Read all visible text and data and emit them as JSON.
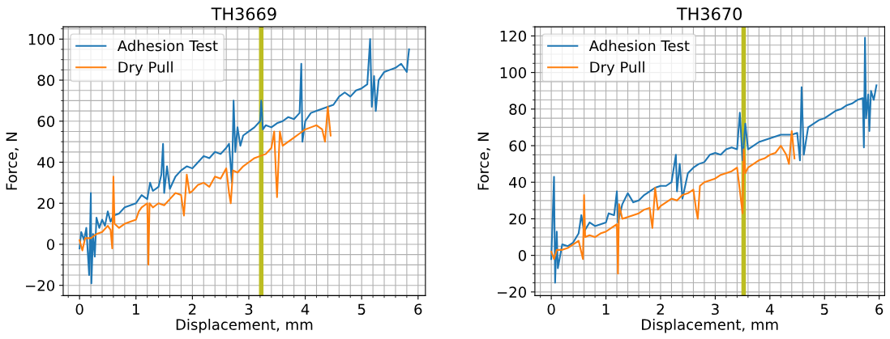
{
  "chart_data": [
    {
      "type": "line",
      "title": "TH3669",
      "xlabel": "Displacement, mm",
      "ylabel": "Force, N",
      "xlim": [
        -0.29,
        6.13
      ],
      "ylim": [
        -25,
        106
      ],
      "xticks": [
        0,
        1,
        2,
        3,
        4,
        5,
        6
      ],
      "yticks": [
        -20,
        0,
        20,
        40,
        60,
        80,
        100
      ],
      "grid": true,
      "legend": "top left",
      "series": [
        {
          "name": "Adhesion Test",
          "color": "#1f77b4",
          "x": [
            0,
            0.03,
            0.08,
            0.12,
            0.17,
            0.2,
            0.21,
            0.24,
            0.27,
            0.3,
            0.35,
            0.4,
            0.45,
            0.5,
            0.55,
            0.6,
            0.7,
            0.8,
            0.9,
            1.0,
            1.1,
            1.2,
            1.25,
            1.3,
            1.4,
            1.45,
            1.48,
            1.5,
            1.55,
            1.6,
            1.7,
            1.8,
            1.9,
            2.0,
            2.1,
            2.2,
            2.3,
            2.4,
            2.5,
            2.6,
            2.65,
            2.7,
            2.73,
            2.76,
            2.8,
            2.85,
            2.9,
            3.0,
            3.1,
            3.2,
            3.22,
            3.25,
            3.3,
            3.4,
            3.5,
            3.6,
            3.7,
            3.8,
            3.9,
            3.93,
            3.95,
            4.0,
            4.1,
            4.2,
            4.3,
            4.4,
            4.5,
            4.6,
            4.7,
            4.8,
            4.9,
            5.0,
            5.1,
            5.15,
            5.18,
            5.22,
            5.25,
            5.3,
            5.4,
            5.5,
            5.6,
            5.7,
            5.8,
            5.82,
            5.84
          ],
          "values": [
            -2,
            6,
            2,
            8,
            -15,
            25,
            -19,
            5,
            -6,
            13,
            8,
            12,
            9,
            16,
            11,
            14,
            15,
            18,
            19,
            20,
            24,
            22,
            30,
            26,
            28,
            34,
            49,
            25,
            38,
            27,
            33,
            36,
            38,
            37,
            40,
            43,
            42,
            45,
            44,
            47,
            49,
            30,
            70,
            45,
            57,
            48,
            53,
            55,
            57,
            60,
            70,
            56,
            58,
            57,
            59,
            60,
            62,
            61,
            64,
            88,
            50,
            60,
            64,
            65,
            66,
            67,
            68,
            72,
            74,
            72,
            75,
            76,
            78,
            100,
            67,
            82,
            65,
            80,
            84,
            85,
            86,
            88,
            84,
            90,
            95
          ]
        },
        {
          "name": "Dry Pull",
          "color": "#ff7f0e",
          "x": [
            0,
            0.05,
            0.1,
            0.2,
            0.3,
            0.4,
            0.5,
            0.55,
            0.58,
            0.6,
            0.62,
            0.7,
            0.8,
            0.9,
            1.0,
            1.05,
            1.1,
            1.2,
            1.22,
            1.24,
            1.3,
            1.4,
            1.5,
            1.6,
            1.7,
            1.8,
            1.85,
            1.9,
            1.95,
            2.0,
            2.1,
            2.2,
            2.3,
            2.4,
            2.5,
            2.6,
            2.65,
            2.68,
            2.72,
            2.8,
            2.9,
            3.0,
            3.1,
            3.2,
            3.3,
            3.4,
            3.45,
            3.48,
            3.5,
            3.55,
            3.6,
            3.7,
            3.8,
            3.9,
            4.0,
            4.1,
            4.2,
            4.3,
            4.35,
            4.4,
            4.45
          ],
          "values": [
            2,
            -3,
            3,
            3,
            5,
            6,
            9,
            7,
            -2,
            33,
            10,
            8,
            10,
            11,
            12,
            16,
            18,
            20,
            -10,
            20,
            18,
            20,
            19,
            22,
            25,
            24,
            14,
            34,
            25,
            26,
            29,
            30,
            28,
            33,
            32,
            37,
            25,
            20,
            36,
            35,
            38,
            40,
            42,
            43,
            44,
            47,
            55,
            35,
            23,
            55,
            48,
            50,
            52,
            54,
            56,
            57,
            58,
            56,
            50,
            67,
            53
          ]
        }
      ],
      "ref_lines": [
        {
          "axis": "x",
          "value": 3.22,
          "color": "#bcbd22"
        }
      ]
    },
    {
      "type": "line",
      "title": "TH3670",
      "xlabel": "Displacement, mm",
      "ylabel": "Force, N",
      "xlim": [
        -0.3,
        6.1
      ],
      "ylim": [
        -22,
        125
      ],
      "xticks": [
        0,
        1,
        2,
        3,
        4,
        5,
        6
      ],
      "yticks": [
        -20,
        0,
        20,
        40,
        60,
        80,
        100,
        120
      ],
      "grid": true,
      "legend": "top left",
      "series": [
        {
          "name": "Adhesion Test",
          "color": "#1f77b4",
          "x": [
            0,
            0.05,
            0.07,
            0.1,
            0.12,
            0.2,
            0.3,
            0.4,
            0.5,
            0.55,
            0.6,
            0.7,
            0.8,
            0.9,
            1.0,
            1.05,
            1.15,
            1.2,
            1.22,
            1.3,
            1.4,
            1.5,
            1.6,
            1.7,
            1.8,
            1.9,
            2.0,
            2.1,
            2.2,
            2.28,
            2.3,
            2.35,
            2.4,
            2.5,
            2.6,
            2.7,
            2.8,
            2.9,
            3.0,
            3.1,
            3.2,
            3.3,
            3.4,
            3.45,
            3.5,
            3.55,
            3.6,
            3.7,
            3.8,
            3.9,
            4.0,
            4.1,
            4.2,
            4.4,
            4.5,
            4.55,
            4.58,
            4.62,
            4.7,
            4.8,
            4.9,
            5.0,
            5.1,
            5.2,
            5.3,
            5.4,
            5.5,
            5.6,
            5.7,
            5.72,
            5.74,
            5.76,
            5.8,
            5.82,
            5.85,
            5.9,
            5.95
          ],
          "values": [
            -2,
            43,
            -15,
            13,
            -7,
            6,
            5,
            7,
            12,
            22,
            13,
            18,
            16,
            17,
            18,
            23,
            22,
            35,
            18,
            28,
            34,
            29,
            30,
            33,
            35,
            37,
            38,
            38,
            40,
            55,
            35,
            50,
            31,
            45,
            48,
            50,
            51,
            55,
            56,
            55,
            58,
            59,
            58,
            78,
            52,
            72,
            58,
            60,
            62,
            63,
            64,
            65,
            66,
            66,
            67,
            52,
            92,
            55,
            70,
            72,
            74,
            75,
            77,
            79,
            80,
            82,
            83,
            85,
            86,
            59,
            119,
            75,
            88,
            68,
            90,
            85,
            93
          ]
        },
        {
          "name": "Dry Pull",
          "color": "#ff7f0e",
          "x": [
            0,
            0.05,
            0.1,
            0.2,
            0.3,
            0.4,
            0.5,
            0.58,
            0.6,
            0.62,
            0.7,
            0.8,
            0.9,
            1.0,
            1.1,
            1.2,
            1.22,
            1.24,
            1.3,
            1.4,
            1.5,
            1.6,
            1.7,
            1.8,
            1.85,
            1.9,
            1.95,
            2.0,
            2.1,
            2.2,
            2.3,
            2.4,
            2.5,
            2.6,
            2.65,
            2.68,
            2.72,
            2.8,
            2.9,
            3.0,
            3.1,
            3.2,
            3.3,
            3.4,
            3.5,
            3.52,
            3.55,
            3.6,
            3.7,
            3.8,
            3.9,
            4.0,
            4.1,
            4.2,
            4.3,
            4.35,
            4.4,
            4.45
          ],
          "values": [
            2,
            -2,
            3,
            3,
            4,
            6,
            8,
            -2,
            33,
            10,
            11,
            10,
            12,
            13,
            15,
            17,
            -10,
            28,
            20,
            21,
            22,
            23,
            25,
            26,
            15,
            37,
            25,
            27,
            29,
            31,
            30,
            33,
            34,
            36,
            25,
            20,
            38,
            40,
            41,
            42,
            44,
            45,
            46,
            48,
            23,
            58,
            45,
            48,
            50,
            52,
            53,
            55,
            56,
            60,
            55,
            50,
            68,
            53
          ]
        }
      ],
      "ref_lines": [
        {
          "axis": "x",
          "value": 3.52,
          "color": "#bcbd22"
        }
      ]
    }
  ]
}
